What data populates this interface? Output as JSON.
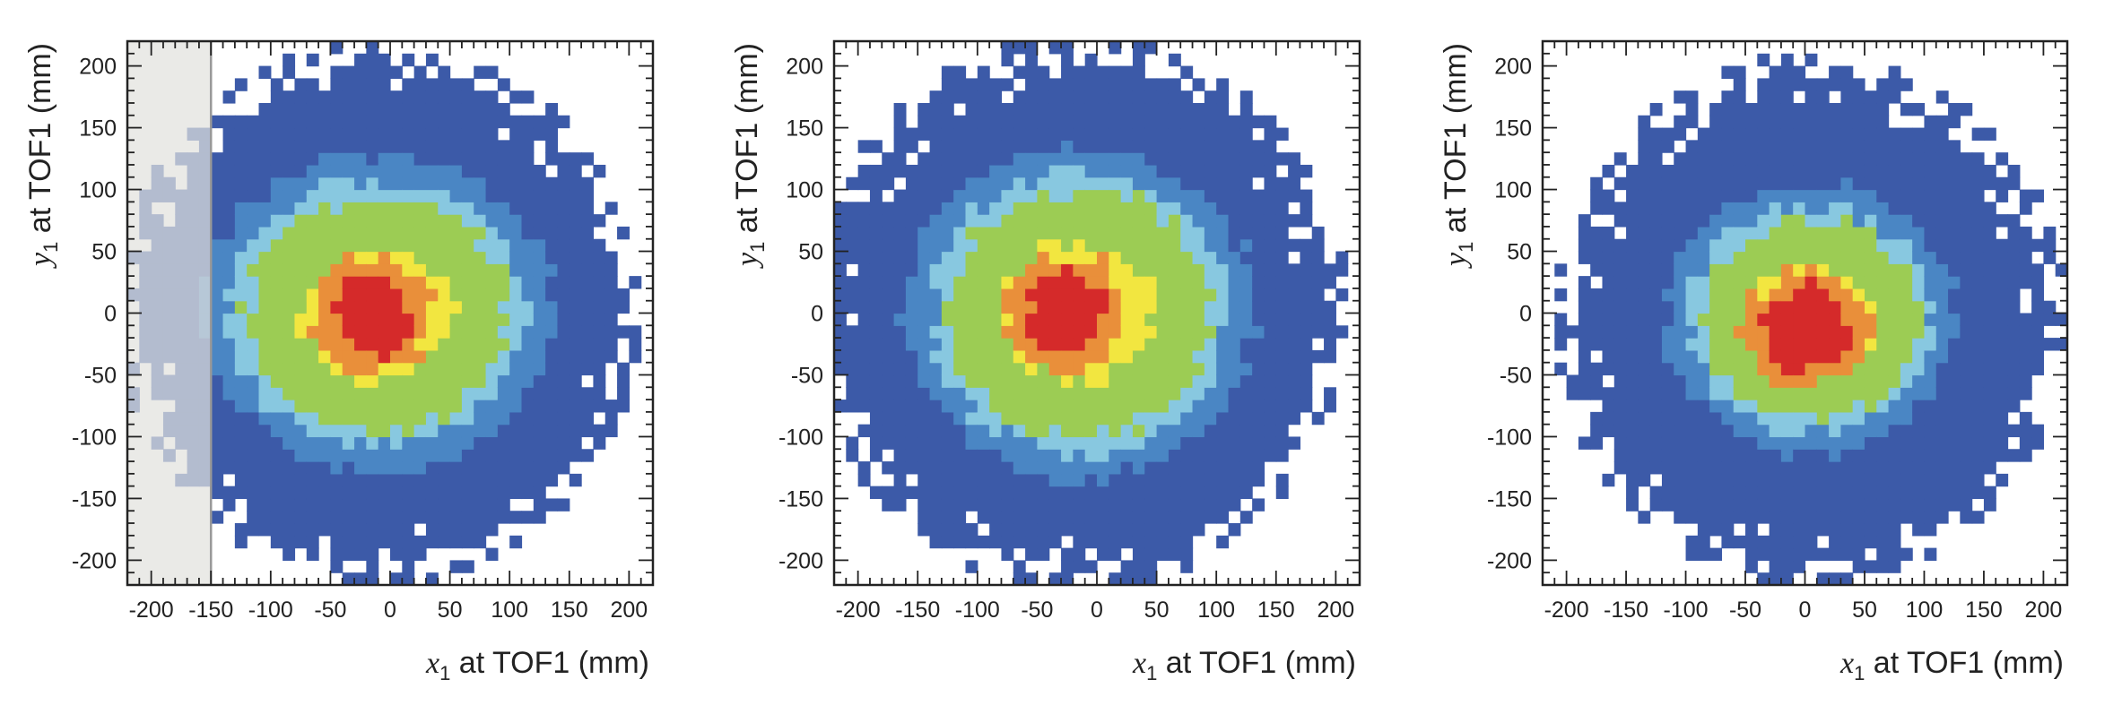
{
  "chart_data": [
    {
      "type": "heatmap",
      "xlabel": "x1 at TOF1 (mm)",
      "ylabel": "y1 at TOF1 (mm)",
      "xlabel_parts": {
        "var": "x",
        "sub": "1",
        "rest": " at TOF1 (mm)"
      },
      "ylabel_parts": {
        "var": "y",
        "sub": "1",
        "rest": " at TOF1 (mm)"
      },
      "xlim": [
        -220,
        220
      ],
      "ylim": [
        -220,
        220
      ],
      "xticks": [
        -200,
        -150,
        -100,
        -50,
        0,
        50,
        100,
        150,
        200
      ],
      "yticks": [
        -200,
        -150,
        -100,
        -50,
        0,
        50,
        100,
        150,
        200
      ],
      "bin_width": 10,
      "center": [
        -10,
        0
      ],
      "radius": [
        115,
        100
      ],
      "outer_extent": 200,
      "core": [
        -15,
        0
      ],
      "shaded_region": {
        "x": [
          -220,
          -150
        ],
        "color": "#e2e2de"
      },
      "colors": [
        "#3c5aa8",
        "#4a86c4",
        "#88c8e0",
        "#9ccc54",
        "#f2e640",
        "#e98f3a",
        "#d52a2a"
      ]
    },
    {
      "type": "heatmap",
      "xlabel": "x1 at TOF1 (mm)",
      "ylabel": "y1 at TOF1 (mm)",
      "xlabel_parts": {
        "var": "x",
        "sub": "1",
        "rest": " at TOF1 (mm)"
      },
      "ylabel_parts": {
        "var": "y",
        "sub": "1",
        "rest": " at TOF1 (mm)"
      },
      "xlim": [
        -220,
        220
      ],
      "ylim": [
        -220,
        220
      ],
      "xticks": [
        -200,
        -150,
        -100,
        -50,
        0,
        50,
        100,
        150,
        200
      ],
      "yticks": [
        -200,
        -150,
        -100,
        -50,
        0,
        50,
        100,
        150,
        200
      ],
      "bin_width": 10,
      "center": [
        -15,
        0
      ],
      "radius": [
        115,
        105
      ],
      "outer_extent": 205,
      "core": [
        -25,
        0
      ],
      "shaded_region": null,
      "colors": [
        "#3c5aa8",
        "#4a86c4",
        "#88c8e0",
        "#9ccc54",
        "#f2e640",
        "#e98f3a",
        "#d52a2a"
      ]
    },
    {
      "type": "heatmap",
      "xlabel": "x1 at TOF1 (mm)",
      "ylabel": "y1 at TOF1 (mm)",
      "xlabel_parts": {
        "var": "x",
        "sub": "1",
        "rest": " at TOF1 (mm)"
      },
      "ylabel_parts": {
        "var": "y",
        "sub": "1",
        "rest": " at TOF1 (mm)"
      },
      "xlim": [
        -220,
        220
      ],
      "ylim": [
        -220,
        220
      ],
      "xticks": [
        -200,
        -150,
        -100,
        -50,
        0,
        50,
        100,
        150,
        200
      ],
      "yticks": [
        -200,
        -150,
        -100,
        -50,
        0,
        50,
        100,
        150,
        200
      ],
      "bin_width": 10,
      "center": [
        5,
        -5
      ],
      "radius": [
        95,
        85
      ],
      "outer_extent": 195,
      "core": [
        0,
        -10
      ],
      "shaded_region": null,
      "colors": [
        "#3c5aa8",
        "#4a86c4",
        "#88c8e0",
        "#9ccc54",
        "#f2e640",
        "#e98f3a",
        "#d52a2a"
      ]
    }
  ]
}
